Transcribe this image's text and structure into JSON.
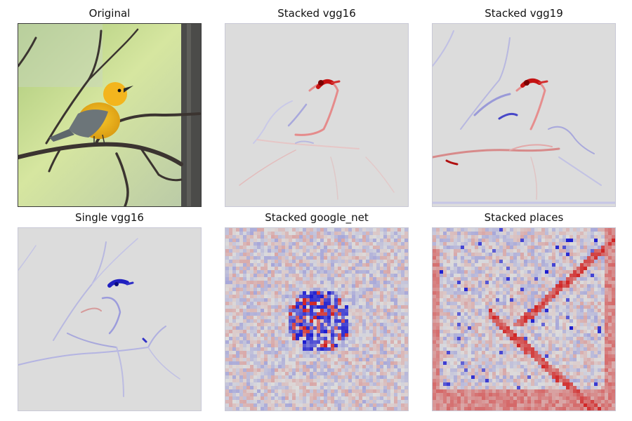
{
  "figure": {
    "panels": [
      {
        "title": "Original",
        "kind": "photo"
      },
      {
        "title": "Stacked vgg16",
        "kind": "saliency-smooth"
      },
      {
        "title": "Stacked vgg19",
        "kind": "saliency-smooth"
      },
      {
        "title": "Single vgg16",
        "kind": "saliency-smooth"
      },
      {
        "title": "Stacked google_net",
        "kind": "saliency-blocky"
      },
      {
        "title": "Stacked places",
        "kind": "saliency-blocky"
      }
    ],
    "colormap": {
      "negative": "#1a1ad0",
      "neutral": "#dcdcdc",
      "positive": "#d01a1a"
    },
    "photo_colors": {
      "background": "#c9dd8a",
      "bird_body": "#f0b81c",
      "bird_wing": "#6b7378",
      "branch": "#3b3430",
      "trunk": "#4a4a48"
    }
  }
}
